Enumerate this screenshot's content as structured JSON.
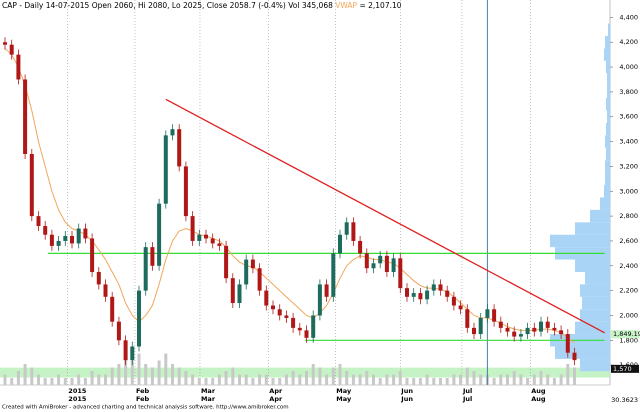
{
  "chart_data": {
    "type": "candlestick",
    "title": "CAP - Daily 14-07-2015 Open 2060, Hi 2080, Lo 2025, Close 2058.7 (-0.4%) Vol 345,068",
    "title_indicator": "VWAP",
    "title_indicator_value": "= 2,107.10",
    "footer": "Created with AmiBroker - advanced charting and technical analysis software. http://www.amibroker.com",
    "up_color": "#1d6b5c",
    "down_color": "#b01818",
    "ma_color": "#f2a65a",
    "ylim": [
      1440,
      4540
    ],
    "yticks": [
      {
        "value": 1600,
        "label": "1,600"
      },
      {
        "value": 1800,
        "label": "1,800"
      },
      {
        "value": 2000,
        "label": "2,000"
      },
      {
        "value": 2200,
        "label": "2,200"
      },
      {
        "value": 2400,
        "label": "2,400"
      },
      {
        "value": 2600,
        "label": "2,600"
      },
      {
        "value": 2800,
        "label": "2,800"
      },
      {
        "value": 3000,
        "label": "3,000"
      },
      {
        "value": 3200,
        "label": "3,200"
      },
      {
        "value": 3400,
        "label": "3,400"
      },
      {
        "value": 3600,
        "label": "3,600"
      },
      {
        "value": 3800,
        "label": "3,800"
      },
      {
        "value": 4000,
        "label": "4,000"
      },
      {
        "value": 4200,
        "label": "4,200"
      },
      {
        "value": 4400,
        "label": "4,400"
      }
    ],
    "x_labels_top": [
      {
        "label": "2015",
        "at": 9.3
      },
      {
        "label": "Feb",
        "at": 19.4
      },
      {
        "label": "Mar",
        "at": 29.1
      },
      {
        "label": "Apr",
        "at": 39.3
      },
      {
        "label": "May",
        "at": 49.3
      },
      {
        "label": "Jun",
        "at": 59
      },
      {
        "label": "Jul",
        "at": 68.2
      },
      {
        "label": "Aug",
        "at": 78.4
      }
    ],
    "x_labels_bottom": [
      {
        "label": "2015",
        "at": 9.3
      },
      {
        "label": "Feb",
        "at": 19.4
      },
      {
        "label": "Mar",
        "at": 29.1
      },
      {
        "label": "Apr",
        "at": 39.3
      },
      {
        "label": "May",
        "at": 49.3
      },
      {
        "label": "Jun",
        "at": 59
      },
      {
        "label": "Jul",
        "at": 68.2
      },
      {
        "label": "Aug",
        "at": 78.4
      }
    ],
    "open": [
      4200,
      4180,
      4100,
      3900,
      3300,
      2800,
      2720,
      2650,
      2560,
      2600,
      2640,
      2580,
      2700,
      2620,
      2350,
      2250,
      2150,
      1950,
      1800,
      1640,
      1750,
      2200,
      2550,
      2400,
      2900,
      3450,
      3500,
      3200,
      2800,
      2600,
      2650,
      2620,
      2580,
      2560,
      2300,
      2100,
      2250,
      2450,
      2380,
      2200,
      2080,
      2050,
      2000,
      1980,
      1900,
      1880,
      1820,
      2000,
      2250,
      2150,
      2500,
      2650,
      2750,
      2600,
      2500,
      2380,
      2420,
      2480,
      2350,
      2460,
      2220,
      2150,
      2180,
      2130,
      2200,
      2250,
      2200,
      2150,
      2080,
      2050,
      1900,
      1850,
      1980,
      2050,
      1950,
      1900,
      1870,
      1830,
      1850,
      1900,
      1870,
      1950,
      1900,
      1880,
      1850,
      1700
    ],
    "high": [
      4240,
      4220,
      4140,
      3940,
      3340,
      2840,
      2760,
      2690,
      2640,
      2680,
      2680,
      2740,
      2740,
      2660,
      2390,
      2290,
      2190,
      1990,
      1840,
      1790,
      2240,
      2590,
      2590,
      2940,
      3490,
      3540,
      3540,
      3240,
      2840,
      2690,
      2690,
      2660,
      2620,
      2600,
      2340,
      2290,
      2490,
      2490,
      2420,
      2240,
      2120,
      2090,
      2040,
      2020,
      1940,
      1920,
      2040,
      2290,
      2290,
      2540,
      2690,
      2790,
      2790,
      2640,
      2540,
      2460,
      2520,
      2520,
      2500,
      2500,
      2260,
      2220,
      2220,
      2240,
      2290,
      2290,
      2240,
      2190,
      2120,
      2090,
      1940,
      2020,
      2090,
      2090,
      1990,
      1940,
      1910,
      1890,
      1940,
      1940,
      1990,
      1990,
      1940,
      1920,
      1890,
      1740
    ],
    "low": [
      4140,
      4060,
      3860,
      3260,
      2760,
      2680,
      2610,
      2520,
      2520,
      2560,
      2540,
      2540,
      2580,
      2310,
      2210,
      2110,
      1910,
      1760,
      1600,
      1600,
      1710,
      2160,
      2360,
      2360,
      2860,
      3410,
      3160,
      2760,
      2560,
      2560,
      2580,
      2540,
      2520,
      2260,
      2060,
      2060,
      2210,
      2340,
      2160,
      2040,
      2010,
      1960,
      1940,
      1860,
      1840,
      1780,
      1780,
      1960,
      2110,
      2110,
      2460,
      2610,
      2560,
      2460,
      2340,
      2340,
      2380,
      2310,
      2310,
      2180,
      2110,
      2110,
      2090,
      2090,
      2160,
      2160,
      2110,
      2040,
      2010,
      1860,
      1810,
      1810,
      1940,
      1910,
      1860,
      1830,
      1790,
      1790,
      1810,
      1830,
      1830,
      1860,
      1840,
      1810,
      1660,
      1600
    ],
    "close": [
      4180,
      4100,
      3900,
      3300,
      2800,
      2720,
      2650,
      2560,
      2600,
      2640,
      2580,
      2700,
      2620,
      2350,
      2250,
      2150,
      1950,
      1800,
      1640,
      1750,
      2200,
      2550,
      2400,
      2900,
      3450,
      3500,
      3200,
      2800,
      2600,
      2650,
      2620,
      2580,
      2560,
      2300,
      2100,
      2250,
      2450,
      2380,
      2200,
      2080,
      2050,
      2000,
      1980,
      1900,
      1880,
      1820,
      2000,
      2250,
      2150,
      2500,
      2650,
      2750,
      2600,
      2500,
      2380,
      2420,
      2480,
      2350,
      2460,
      2220,
      2150,
      2180,
      2130,
      2200,
      2250,
      2200,
      2150,
      2080,
      2050,
      1900,
      1850,
      1980,
      2050,
      1950,
      1900,
      1870,
      1830,
      1850,
      1900,
      1870,
      1950,
      1900,
      1880,
      1850,
      1700,
      1640
    ],
    "ma": [
      4150,
      4100,
      4000,
      3850,
      3650,
      3400,
      3200,
      3000,
      2850,
      2750,
      2700,
      2680,
      2650,
      2600,
      2530,
      2450,
      2350,
      2250,
      2100,
      2000,
      1950,
      2000,
      2080,
      2250,
      2450,
      2600,
      2680,
      2700,
      2680,
      2650,
      2640,
      2620,
      2600,
      2550,
      2480,
      2430,
      2400,
      2390,
      2350,
      2300,
      2250,
      2200,
      2150,
      2100,
      2050,
      2000,
      1980,
      2020,
      2080,
      2180,
      2300,
      2400,
      2450,
      2480,
      2470,
      2450,
      2450,
      2430,
      2420,
      2380,
      2330,
      2280,
      2240,
      2220,
      2220,
      2210,
      2190,
      2150,
      2100,
      2050,
      2000,
      1980,
      1980,
      1960,
      1940,
      1910,
      1890,
      1880,
      1880,
      1880,
      1890,
      1890,
      1880,
      1860,
      1820,
      1780
    ],
    "vlim": [
      0,
      10
    ],
    "volume": [
      3,
      2,
      4,
      6,
      5,
      3,
      2,
      2,
      3,
      2,
      2,
      3,
      2,
      4,
      3,
      3,
      5,
      6,
      8,
      7,
      9,
      6,
      5,
      7,
      9,
      6,
      5,
      4,
      3,
      2,
      2,
      2,
      3,
      4,
      5,
      3,
      3,
      2,
      3,
      3,
      2,
      2,
      3,
      4,
      3,
      4,
      6,
      5,
      3,
      5,
      6,
      4,
      3,
      3,
      4,
      3,
      2,
      3,
      3,
      4,
      2,
      2,
      2,
      3,
      2,
      2,
      2,
      3,
      3,
      5,
      4,
      3,
      3,
      2,
      3,
      3,
      4,
      3,
      2,
      3,
      4,
      3,
      2,
      3,
      6,
      5
    ],
    "profile_bins": [
      1600,
      1700,
      1800,
      1900,
      2000,
      2100,
      2200,
      2300,
      2400,
      2500,
      2600,
      2700,
      2800,
      2900,
      3000,
      3100,
      3200,
      3300,
      3400,
      3500,
      3600,
      3700,
      3800,
      3900,
      4000,
      4100,
      4200,
      4300
    ],
    "profile": [
      30,
      55,
      60,
      35,
      30,
      28,
      30,
      25,
      35,
      55,
      60,
      35,
      20,
      10,
      6,
      5,
      5,
      4,
      5,
      4,
      3,
      4,
      3,
      3,
      4,
      6,
      5,
      2
    ],
    "zone": [
      1500,
      1580
    ],
    "trendline": {
      "from": [
        24,
        3740
      ],
      "to": [
        89.5,
        1860
      ]
    },
    "support_lines": [
      {
        "from": [
          6.4,
          2500
        ],
        "to": [
          89.5,
          2500
        ]
      },
      {
        "from": [
          44.8,
          1800
        ],
        "to": [
          89.5,
          1800
        ]
      }
    ],
    "marker_line": 72,
    "price_labels": [
      {
        "value": 1849.19,
        "label": "1,849.19"
      },
      {
        "value": 1570,
        "label": "1,570"
      }
    ],
    "indicator_label": "30.3623"
  }
}
